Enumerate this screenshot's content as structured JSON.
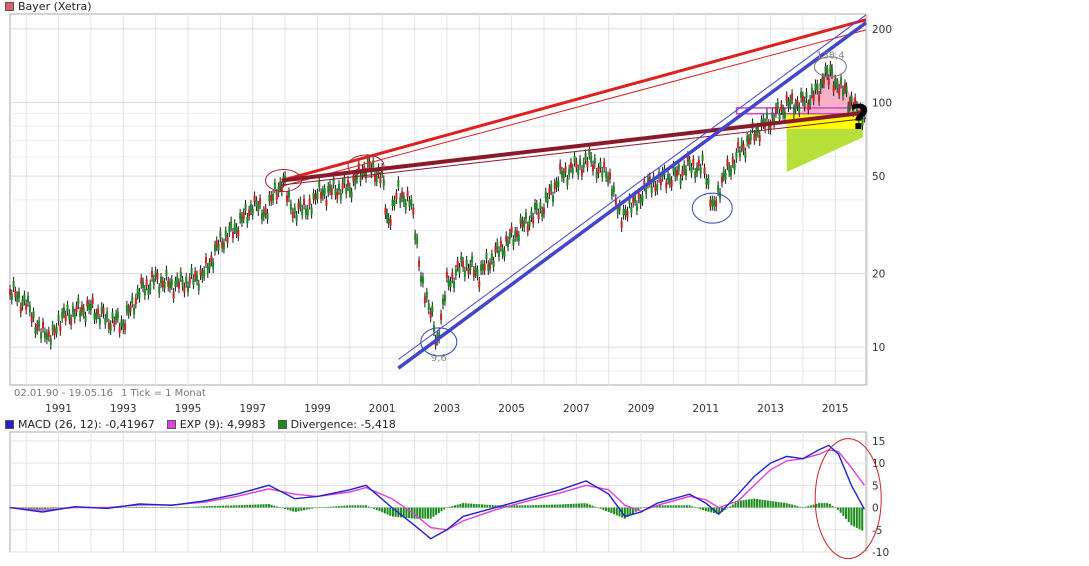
{
  "header": {
    "price_title": "Bayer (Xetra)",
    "price_color": "#e85a6a",
    "date_range": "02.01.90 - 19.05.16",
    "tick_info": "1 Tick = 1 Monat"
  },
  "macd_legend": {
    "macd": "MACD (26, 12): -0,41967",
    "exp": "EXP (9): 4,9983",
    "divergence": "Divergence: -5,418",
    "macd_color": "#2222cc",
    "exp_color": "#e040e0",
    "divergence_color": "#1a8a1a"
  },
  "chart_data": [
    {
      "type": "line",
      "name": "price",
      "log_scale": true,
      "ylim": [
        7,
        230
      ],
      "xlim": [
        1990.0,
        2016.45
      ],
      "y_ticks": [
        "200",
        "100",
        "50",
        "20",
        "10"
      ],
      "x_ticks": [
        "1991",
        "1993",
        "1995",
        "1997",
        "1999",
        "2001",
        "2003",
        "2005",
        "2007",
        "2009",
        "2011",
        "2013",
        "2015"
      ],
      "grid": true,
      "series": [
        {
          "values": [
            [
              1990.0,
              17
            ],
            [
              1990.5,
              15
            ],
            [
              1990.9,
              12
            ],
            [
              1991.2,
              10.5
            ],
            [
              1991.5,
              13
            ],
            [
              1992.0,
              14
            ],
            [
              1992.5,
              14.5
            ],
            [
              1993.0,
              13
            ],
            [
              1993.5,
              12.5
            ],
            [
              1994.0,
              17
            ],
            [
              1994.5,
              19
            ],
            [
              1995.0,
              18
            ],
            [
              1995.5,
              18.5
            ],
            [
              1996.0,
              20
            ],
            [
              1996.5,
              27
            ],
            [
              1997.0,
              31
            ],
            [
              1997.5,
              38
            ],
            [
              1997.9,
              36
            ],
            [
              1998.3,
              45
            ],
            [
              1998.5,
              47
            ],
            [
              1998.8,
              35
            ],
            [
              1999.2,
              38
            ],
            [
              1999.5,
              42
            ],
            [
              2000.0,
              44
            ],
            [
              2000.5,
              45
            ],
            [
              2001.0,
              55
            ],
            [
              2001.5,
              50
            ],
            [
              2001.7,
              31
            ],
            [
              2002.0,
              44
            ],
            [
              2002.4,
              38
            ],
            [
              2002.7,
              20
            ],
            [
              2003.0,
              14
            ],
            [
              2003.2,
              10.5
            ],
            [
              2003.5,
              18
            ],
            [
              2004.0,
              22
            ],
            [
              2004.5,
              20
            ],
            [
              2005.0,
              24
            ],
            [
              2005.5,
              28
            ],
            [
              2006.0,
              33
            ],
            [
              2006.5,
              38
            ],
            [
              2007.0,
              50
            ],
            [
              2007.5,
              55
            ],
            [
              2007.9,
              58
            ],
            [
              2008.3,
              53
            ],
            [
              2008.6,
              45
            ],
            [
              2008.9,
              35
            ],
            [
              2009.2,
              37
            ],
            [
              2009.6,
              44
            ],
            [
              2010.0,
              48
            ],
            [
              2010.5,
              50
            ],
            [
              2011.0,
              55
            ],
            [
              2011.4,
              55
            ],
            [
              2011.7,
              38
            ],
            [
              2012.0,
              48
            ],
            [
              2012.5,
              62
            ],
            [
              2013.0,
              75
            ],
            [
              2013.5,
              85
            ],
            [
              2014.0,
              98
            ],
            [
              2014.5,
              100
            ],
            [
              2015.0,
              112
            ],
            [
              2015.25,
              135
            ],
            [
              2015.5,
              122
            ],
            [
              2015.8,
              110
            ],
            [
              2016.0,
              97
            ],
            [
              2016.4,
              89
            ]
          ]
        }
      ],
      "annotations": [
        "9,6",
        "138,4",
        "?"
      ]
    },
    {
      "type": "line",
      "name": "macd",
      "ylim": [
        -10,
        17
      ],
      "y_ticks": [
        "15",
        "10",
        "5",
        "0",
        "-5",
        "-10"
      ],
      "grid": true,
      "series": [
        {
          "name": "MACD (26, 12): -0,41967",
          "values": [
            [
              1990.0,
              0
            ],
            [
              1991.0,
              -1
            ],
            [
              1992.0,
              0.2
            ],
            [
              1993.0,
              -0.2
            ],
            [
              1994.0,
              0.8
            ],
            [
              1995.0,
              0.5
            ],
            [
              1996.0,
              1.5
            ],
            [
              1997.0,
              3
            ],
            [
              1998.0,
              5
            ],
            [
              1998.8,
              2
            ],
            [
              1999.5,
              2.5
            ],
            [
              2000.5,
              4
            ],
            [
              2001.0,
              5
            ],
            [
              2001.8,
              0
            ],
            [
              2002.5,
              -4
            ],
            [
              2003.0,
              -7
            ],
            [
              2003.5,
              -5
            ],
            [
              2004.0,
              -2
            ],
            [
              2005.0,
              0
            ],
            [
              2006.0,
              2
            ],
            [
              2007.0,
              4
            ],
            [
              2007.8,
              6
            ],
            [
              2008.5,
              3
            ],
            [
              2009.0,
              -2
            ],
            [
              2009.5,
              -1
            ],
            [
              2010.0,
              1
            ],
            [
              2011.0,
              3
            ],
            [
              2011.5,
              1
            ],
            [
              2011.9,
              -1.5
            ],
            [
              2012.5,
              3
            ],
            [
              2013.0,
              7
            ],
            [
              2013.5,
              10
            ],
            [
              2014.0,
              11.5
            ],
            [
              2014.5,
              11
            ],
            [
              2015.0,
              13
            ],
            [
              2015.3,
              14
            ],
            [
              2015.6,
              12
            ],
            [
              2016.0,
              5
            ],
            [
              2016.4,
              -0.4
            ]
          ]
        },
        {
          "name": "EXP (9): 4,9983",
          "values": [
            [
              1990.0,
              0
            ],
            [
              1991.0,
              -0.6
            ],
            [
              1992.0,
              0
            ],
            [
              1993.0,
              0
            ],
            [
              1994.0,
              0.6
            ],
            [
              1995.0,
              0.6
            ],
            [
              1996.0,
              1.2
            ],
            [
              1997.0,
              2.5
            ],
            [
              1998.0,
              4.2
            ],
            [
              1998.8,
              3
            ],
            [
              1999.5,
              2.5
            ],
            [
              2000.5,
              3.5
            ],
            [
              2001.0,
              4.5
            ],
            [
              2001.8,
              2
            ],
            [
              2002.5,
              -1.5
            ],
            [
              2003.0,
              -4.5
            ],
            [
              2003.5,
              -5
            ],
            [
              2004.0,
              -3
            ],
            [
              2005.0,
              -0.5
            ],
            [
              2006.0,
              1.5
            ],
            [
              2007.0,
              3.3
            ],
            [
              2007.8,
              5
            ],
            [
              2008.5,
              4
            ],
            [
              2009.0,
              0.5
            ],
            [
              2009.5,
              -0.8
            ],
            [
              2010.0,
              0.5
            ],
            [
              2011.0,
              2.5
            ],
            [
              2011.5,
              1.8
            ],
            [
              2011.9,
              0
            ],
            [
              2012.5,
              1.5
            ],
            [
              2013.0,
              5
            ],
            [
              2013.5,
              8.5
            ],
            [
              2014.0,
              10.5
            ],
            [
              2014.5,
              11
            ],
            [
              2015.0,
              12
            ],
            [
              2015.3,
              13
            ],
            [
              2015.6,
              12.6
            ],
            [
              2016.0,
              9
            ],
            [
              2016.4,
              5
            ]
          ]
        }
      ],
      "divergence": [
        [
          1990.0,
          0
        ],
        [
          1991.0,
          -0.4
        ],
        [
          1992.0,
          0.2
        ],
        [
          1993.0,
          -0.2
        ],
        [
          1994.0,
          0.2
        ],
        [
          1995.0,
          -0.1
        ],
        [
          1996.0,
          0.3
        ],
        [
          1997.0,
          0.5
        ],
        [
          1998.0,
          0.8
        ],
        [
          1998.8,
          -1
        ],
        [
          1999.5,
          0
        ],
        [
          2000.5,
          0.5
        ],
        [
          2001.0,
          0.5
        ],
        [
          2001.8,
          -2
        ],
        [
          2002.5,
          -2.5
        ],
        [
          2003.0,
          -2.5
        ],
        [
          2003.5,
          0
        ],
        [
          2004.0,
          1
        ],
        [
          2005.0,
          0.5
        ],
        [
          2006.0,
          0.5
        ],
        [
          2007.0,
          0.7
        ],
        [
          2007.8,
          1
        ],
        [
          2008.5,
          -1
        ],
        [
          2009.0,
          -2.5
        ],
        [
          2009.5,
          -0.2
        ],
        [
          2010.0,
          0.5
        ],
        [
          2011.0,
          0.5
        ],
        [
          2011.5,
          -0.8
        ],
        [
          2011.9,
          -1.5
        ],
        [
          2012.5,
          1.5
        ],
        [
          2013.0,
          2
        ],
        [
          2013.5,
          1.5
        ],
        [
          2014.0,
          1
        ],
        [
          2014.5,
          0
        ],
        [
          2015.0,
          1
        ],
        [
          2015.3,
          1
        ],
        [
          2015.6,
          -0.6
        ],
        [
          2016.0,
          -4
        ],
        [
          2016.4,
          -5.4
        ]
      ]
    }
  ]
}
